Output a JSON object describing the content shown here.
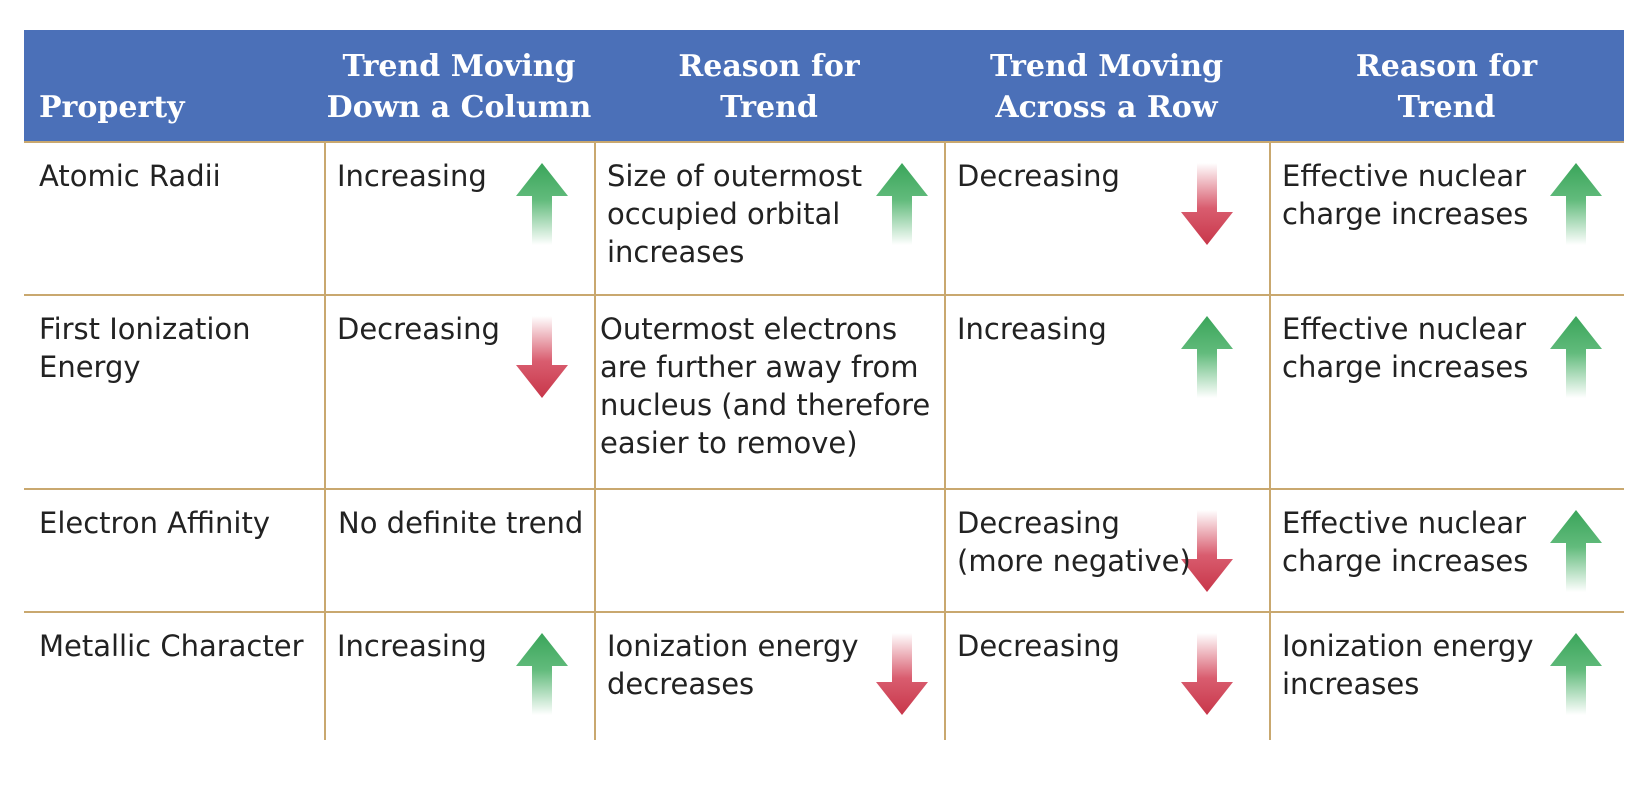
{
  "headers": [
    "Property",
    "Trend Moving\nDown a Column",
    "Reason for\nTrend",
    "Trend Moving\nAcross a Row",
    "Reason for\nTrend"
  ],
  "colors": {
    "header_bg": "#4b70b8",
    "rule": "#c9a86f",
    "up_arrow": "#3aa55a",
    "down_arrow": "#c8364a"
  },
  "rows": [
    {
      "property": "Atomic Radii",
      "down_trend": "Increasing",
      "down_arrow": "up",
      "down_reason": "Size of outermost\noccupied orbital\nincreases",
      "down_reason_arrow": "up",
      "across_trend": "Decreasing",
      "across_arrow": "down",
      "across_reason": "Effective nuclear\ncharge increases",
      "across_reason_arrow": "up"
    },
    {
      "property": "First Ionization\nEnergy",
      "down_trend": "Decreasing",
      "down_arrow": "down",
      "down_reason": "Outermost electrons\nare further away from\nnucleus (and therefore\neasier to remove)",
      "down_reason_arrow": "",
      "across_trend": "Increasing",
      "across_arrow": "up",
      "across_reason": "Effective nuclear\ncharge increases",
      "across_reason_arrow": "up"
    },
    {
      "property": "Electron Affinity",
      "down_trend": "No definite trend",
      "down_arrow": "",
      "down_reason": "",
      "down_reason_arrow": "",
      "across_trend": "Decreasing\n(more negative)",
      "across_arrow": "down",
      "across_reason": "Effective nuclear\ncharge increases",
      "across_reason_arrow": "up"
    },
    {
      "property": "Metallic Character",
      "down_trend": "Increasing",
      "down_arrow": "up",
      "down_reason": "Ionization energy\ndecreases",
      "down_reason_arrow": "down",
      "across_trend": "Decreasing",
      "across_arrow": "down",
      "across_reason": "Ionization energy\nincreases",
      "across_reason_arrow": "up"
    }
  ]
}
